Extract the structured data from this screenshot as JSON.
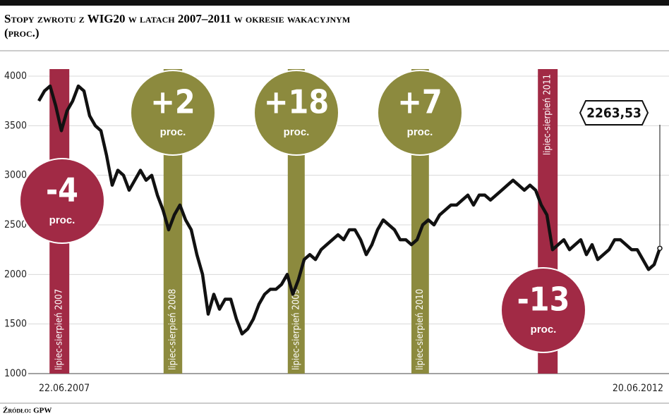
{
  "chart_data": {
    "type": "line",
    "title": "Stopy zwrotu z WIG20 w latach 2007–2011 w okresie wakacyjnym",
    "subtitle": "(proc.)",
    "source": "Źródło: GPW",
    "end_label": "2263,53",
    "categories": [
      "22.06.2007",
      null,
      null,
      null,
      null,
      null,
      null,
      null,
      null,
      null,
      null,
      null,
      null,
      null,
      null,
      null,
      null,
      null,
      null,
      null,
      null,
      null,
      null,
      null,
      null,
      null,
      null,
      null,
      null,
      null,
      null,
      null,
      null,
      null,
      null,
      null,
      null,
      null,
      null,
      null,
      null,
      null,
      null,
      null,
      null,
      null,
      null,
      null,
      null,
      null,
      null,
      null,
      null,
      null,
      null,
      null,
      null,
      null,
      null,
      null,
      null,
      null,
      null,
      null,
      null,
      null,
      null,
      null,
      null,
      null,
      null,
      null,
      null,
      null,
      null,
      null,
      null,
      null,
      null,
      null,
      null,
      null,
      null,
      null,
      null,
      null,
      null,
      null,
      null,
      null,
      null,
      null,
      null,
      null,
      null,
      null,
      null,
      null,
      null,
      null,
      null,
      null,
      null,
      null,
      null,
      null,
      null,
      null,
      null,
      null,
      "20.06.2012"
    ],
    "values": [
      3750,
      3850,
      3900,
      3700,
      3450,
      3650,
      3750,
      3900,
      3850,
      3600,
      3500,
      3450,
      3200,
      2900,
      3050,
      3000,
      2850,
      2950,
      3050,
      2950,
      3000,
      2800,
      2650,
      2450,
      2600,
      2700,
      2550,
      2450,
      2200,
      2000,
      1600,
      1800,
      1650,
      1750,
      1750,
      1550,
      1400,
      1450,
      1550,
      1700,
      1800,
      1850,
      1850,
      1900,
      2000,
      1800,
      1950,
      2150,
      2200,
      2150,
      2250,
      2300,
      2350,
      2400,
      2350,
      2450,
      2450,
      2350,
      2200,
      2300,
      2450,
      2550,
      2500,
      2450,
      2350,
      2350,
      2300,
      2350,
      2500,
      2550,
      2500,
      2600,
      2650,
      2700,
      2700,
      2750,
      2800,
      2700,
      2800,
      2800,
      2750,
      2800,
      2850,
      2900,
      2950,
      2900,
      2850,
      2900,
      2850,
      2700,
      2600,
      2250,
      2300,
      2350,
      2250,
      2300,
      2350,
      2200,
      2300,
      2150,
      2200,
      2250,
      2350,
      2350,
      2300,
      2250,
      2250,
      2150,
      2050,
      2100,
      2263.53
    ],
    "color": "#111111",
    "ylim": [
      1000,
      4000
    ],
    "yticks": [
      1000,
      1500,
      2000,
      2500,
      3000,
      3500,
      4000
    ],
    "grid": true,
    "periods": [
      {
        "label": "lipiec-sierpień 2007",
        "range": [
          1.9,
          5.4
        ],
        "return": "-4",
        "unit": "proc.",
        "color": "#a12a45"
      },
      {
        "label": "lipiec-sierpień 2008",
        "range": [
          22.1,
          25.4
        ],
        "return": "+2",
        "unit": "proc.",
        "color": "#8c8a3e"
      },
      {
        "label": "lipiec-sierpień 2009",
        "range": [
          44.1,
          47.1
        ],
        "return": "+18",
        "unit": "proc.",
        "color": "#8c8a3e"
      },
      {
        "label": "lipiec-sierpień 2010",
        "range": [
          66,
          69.1
        ],
        "return": "+7",
        "unit": "proc.",
        "color": "#8c8a3e"
      },
      {
        "label": "lipiec-sierpień 2011",
        "range": [
          88.4,
          91.9
        ],
        "return": "-13",
        "unit": "proc.",
        "color": "#a12a45"
      }
    ]
  }
}
